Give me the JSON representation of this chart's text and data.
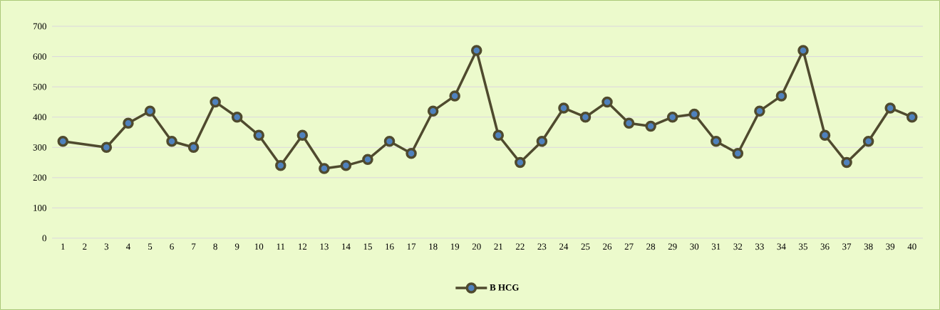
{
  "chart_data": {
    "type": "line",
    "x": [
      1,
      3,
      4,
      5,
      6,
      7,
      8,
      9,
      10,
      11,
      12,
      13,
      14,
      15,
      16,
      17,
      18,
      19,
      20,
      21,
      22,
      23,
      24,
      25,
      26,
      27,
      28,
      29,
      30,
      31,
      32,
      33,
      34,
      35,
      36,
      37,
      38,
      39,
      40
    ],
    "series": [
      {
        "name": "B HCG",
        "color": "#4f4a2e",
        "values": [
          320,
          300,
          380,
          420,
          320,
          300,
          450,
          400,
          340,
          240,
          340,
          230,
          240,
          260,
          320,
          280,
          420,
          470,
          620,
          340,
          250,
          320,
          430,
          400,
          450,
          380,
          370,
          400,
          410,
          320,
          280,
          420,
          470,
          620,
          340,
          250,
          320,
          430,
          400
        ]
      }
    ],
    "xlim": [
      0.5,
      40.5
    ],
    "xticks": [
      1,
      2,
      3,
      4,
      5,
      6,
      7,
      8,
      9,
      10,
      11,
      12,
      13,
      14,
      15,
      16,
      17,
      18,
      19,
      20,
      21,
      22,
      23,
      24,
      25,
      26,
      27,
      28,
      29,
      30,
      31,
      32,
      33,
      34,
      35,
      36,
      37,
      38,
      39,
      40
    ],
    "ylim": [
      0,
      700
    ],
    "yticks": [
      0,
      100,
      200,
      300,
      400,
      500,
      600,
      700
    ],
    "grid": "y",
    "legend": "bottom",
    "marker": "circle",
    "line_style": "solid"
  }
}
